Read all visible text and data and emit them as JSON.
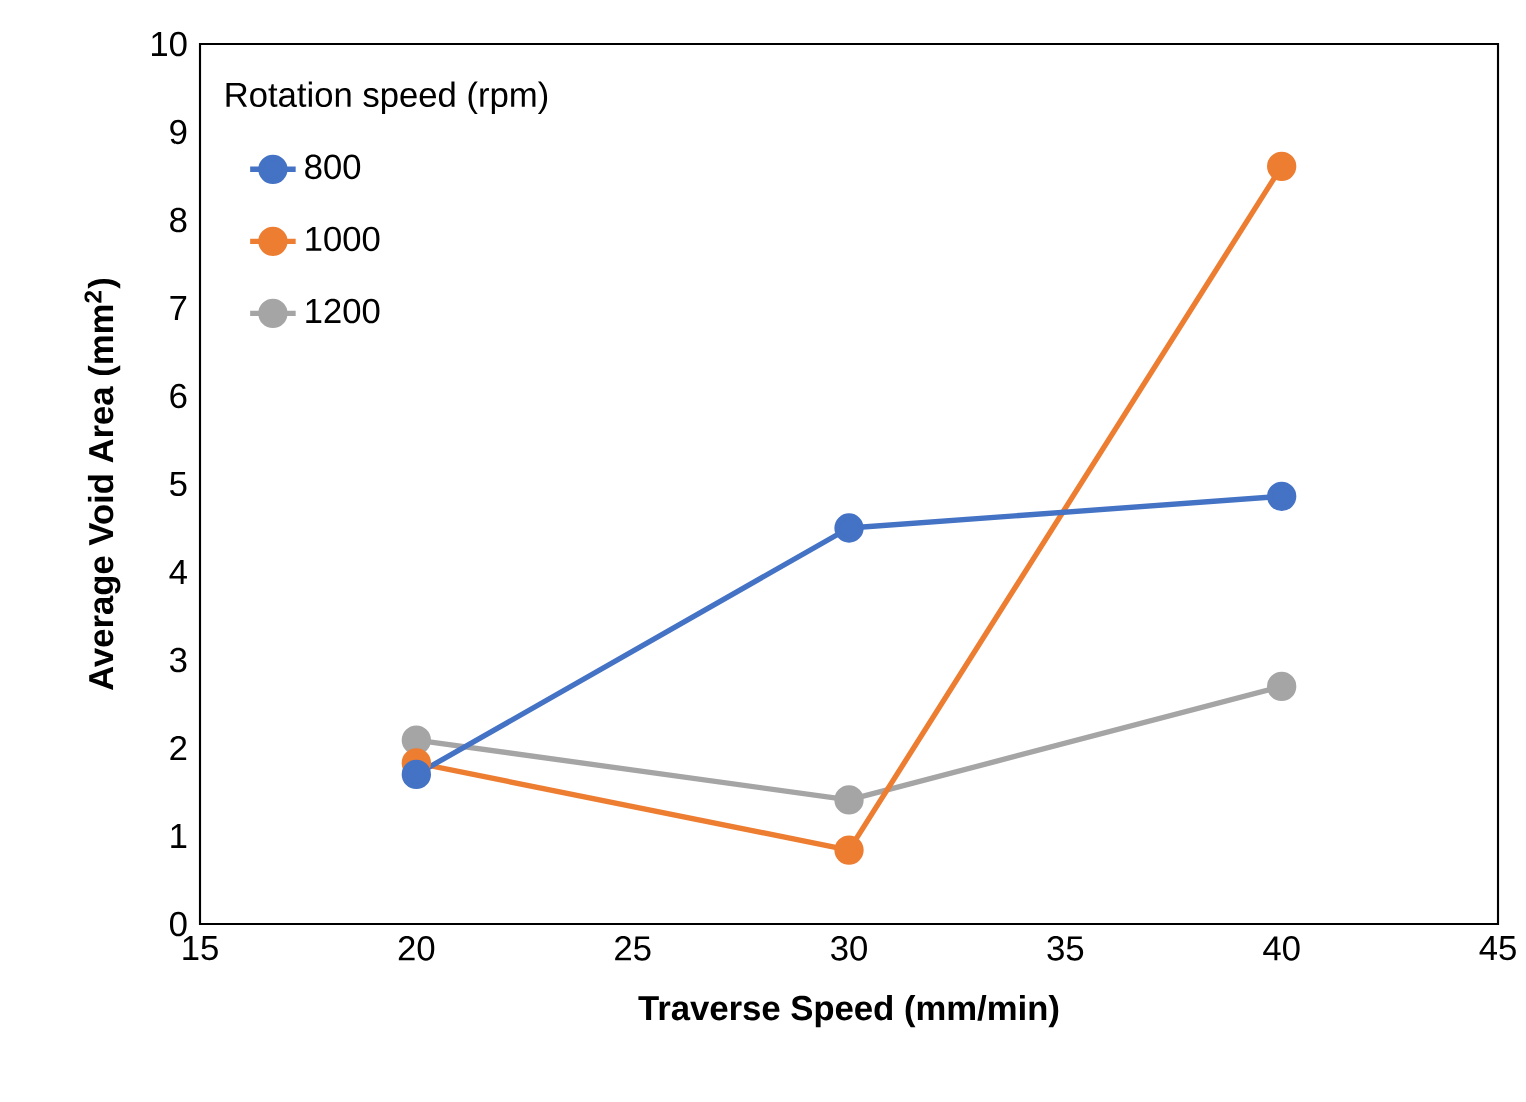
{
  "chart_data": {
    "type": "line",
    "xlabel": "Traverse Speed (mm/min)",
    "ylabel": "Average Void Area (mm$^{2}$)",
    "legend_title": "Rotation speed (rpm)",
    "x": [
      20,
      30,
      40
    ],
    "series": [
      {
        "name": "800",
        "color": "#4472c4",
        "values": [
          1.7,
          4.5,
          4.86
        ]
      },
      {
        "name": "1000",
        "color": "#ed7d31",
        "values": [
          1.83,
          0.84,
          8.61
        ]
      },
      {
        "name": "1200",
        "color": "#a5a5a5",
        "values": [
          2.09,
          1.41,
          2.7
        ]
      }
    ],
    "xlim": [
      15,
      45
    ],
    "ylim": [
      0,
      10
    ],
    "xticks": [
      15,
      20,
      25,
      30,
      35,
      40,
      45
    ],
    "yticks": [
      0,
      1,
      2,
      3,
      4,
      5,
      6,
      7,
      8,
      9,
      10
    ],
    "grid": false,
    "legend": "top left",
    "marker": "circle",
    "line_style": "solid"
  }
}
